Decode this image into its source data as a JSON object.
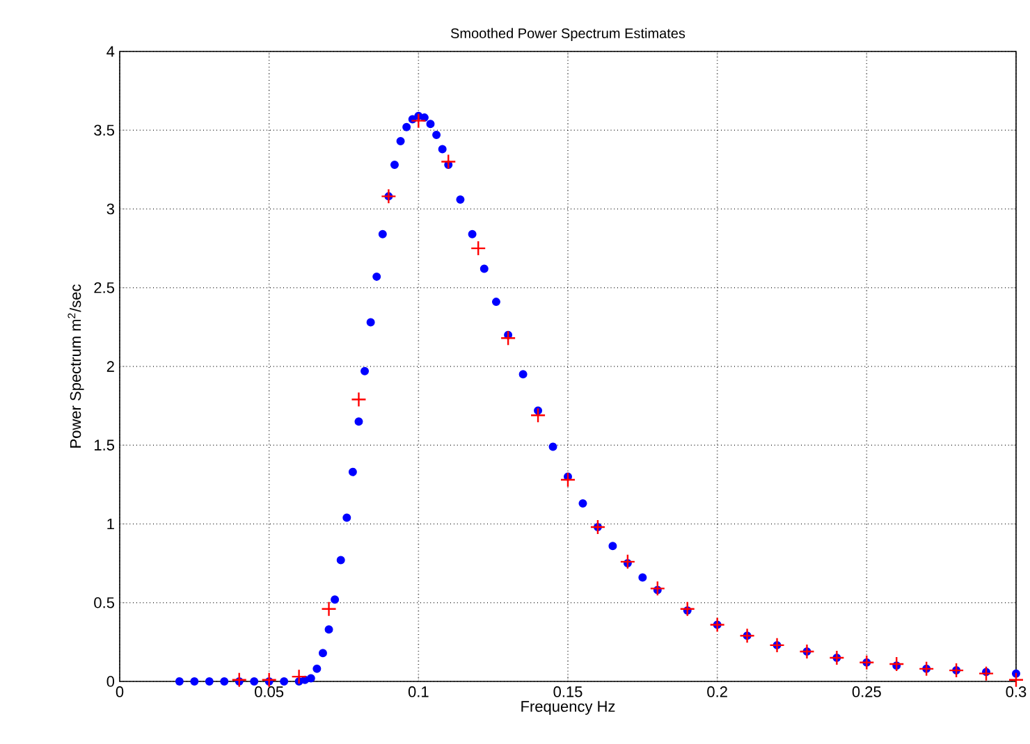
{
  "chart_data": {
    "type": "scatter",
    "title": "Smoothed Power Spectrum  Estimates",
    "xlabel": "Frequency  Hz",
    "ylabel": "Power Spectrum   m$^{2}$/sec",
    "xlim": [
      0,
      0.3
    ],
    "ylim": [
      0,
      4
    ],
    "xticks": [
      0,
      0.05,
      0.1,
      0.15,
      0.2,
      0.25,
      0.3
    ],
    "yticks": [
      0,
      0.5,
      1,
      1.5,
      2,
      2.5,
      3,
      3.5,
      4
    ],
    "grid": true,
    "series": [
      {
        "color": "#0000ff",
        "marker": "circle",
        "x": [
          0.02,
          0.025,
          0.03,
          0.035,
          0.04,
          0.045,
          0.05,
          0.055,
          0.06,
          0.062,
          0.064,
          0.066,
          0.068,
          0.07,
          0.072,
          0.074,
          0.076,
          0.078,
          0.08,
          0.082,
          0.084,
          0.086,
          0.088,
          0.09,
          0.092,
          0.094,
          0.096,
          0.098,
          0.1,
          0.102,
          0.104,
          0.106,
          0.108,
          0.11,
          0.114,
          0.118,
          0.122,
          0.126,
          0.13,
          0.135,
          0.14,
          0.145,
          0.15,
          0.155,
          0.16,
          0.165,
          0.17,
          0.175,
          0.18,
          0.19,
          0.2,
          0.21,
          0.22,
          0.23,
          0.24,
          0.25,
          0.26,
          0.27,
          0.28,
          0.29,
          0.3
        ],
        "values": [
          0,
          0,
          0,
          0,
          0,
          0,
          0,
          0,
          0,
          0.01,
          0.02,
          0.08,
          0.18,
          0.33,
          0.52,
          0.77,
          1.04,
          1.33,
          1.65,
          1.97,
          2.28,
          2.57,
          2.84,
          3.08,
          3.28,
          3.43,
          3.52,
          3.57,
          3.59,
          3.58,
          3.54,
          3.47,
          3.38,
          3.28,
          3.06,
          2.84,
          2.62,
          2.41,
          2.2,
          1.95,
          1.72,
          1.49,
          1.3,
          1.13,
          0.98,
          0.86,
          0.75,
          0.66,
          0.58,
          0.45,
          0.36,
          0.29,
          0.23,
          0.19,
          0.15,
          0.12,
          0.1,
          0.08,
          0.07,
          0.06,
          0.05
        ]
      },
      {
        "color": "#ff0000",
        "marker": "cross",
        "x": [
          0.04,
          0.05,
          0.06,
          0.07,
          0.08,
          0.09,
          0.1,
          0.11,
          0.12,
          0.13,
          0.14,
          0.15,
          0.16,
          0.17,
          0.18,
          0.19,
          0.2,
          0.21,
          0.22,
          0.23,
          0.24,
          0.25,
          0.26,
          0.27,
          0.28,
          0.29,
          0.3
        ],
        "values": [
          0.01,
          0.01,
          0.03,
          0.46,
          1.79,
          3.08,
          3.56,
          3.3,
          2.75,
          2.18,
          1.69,
          1.28,
          0.98,
          0.76,
          0.59,
          0.46,
          0.36,
          0.29,
          0.23,
          0.19,
          0.15,
          0.12,
          0.11,
          0.08,
          0.07,
          0.05,
          0.01
        ]
      }
    ]
  }
}
